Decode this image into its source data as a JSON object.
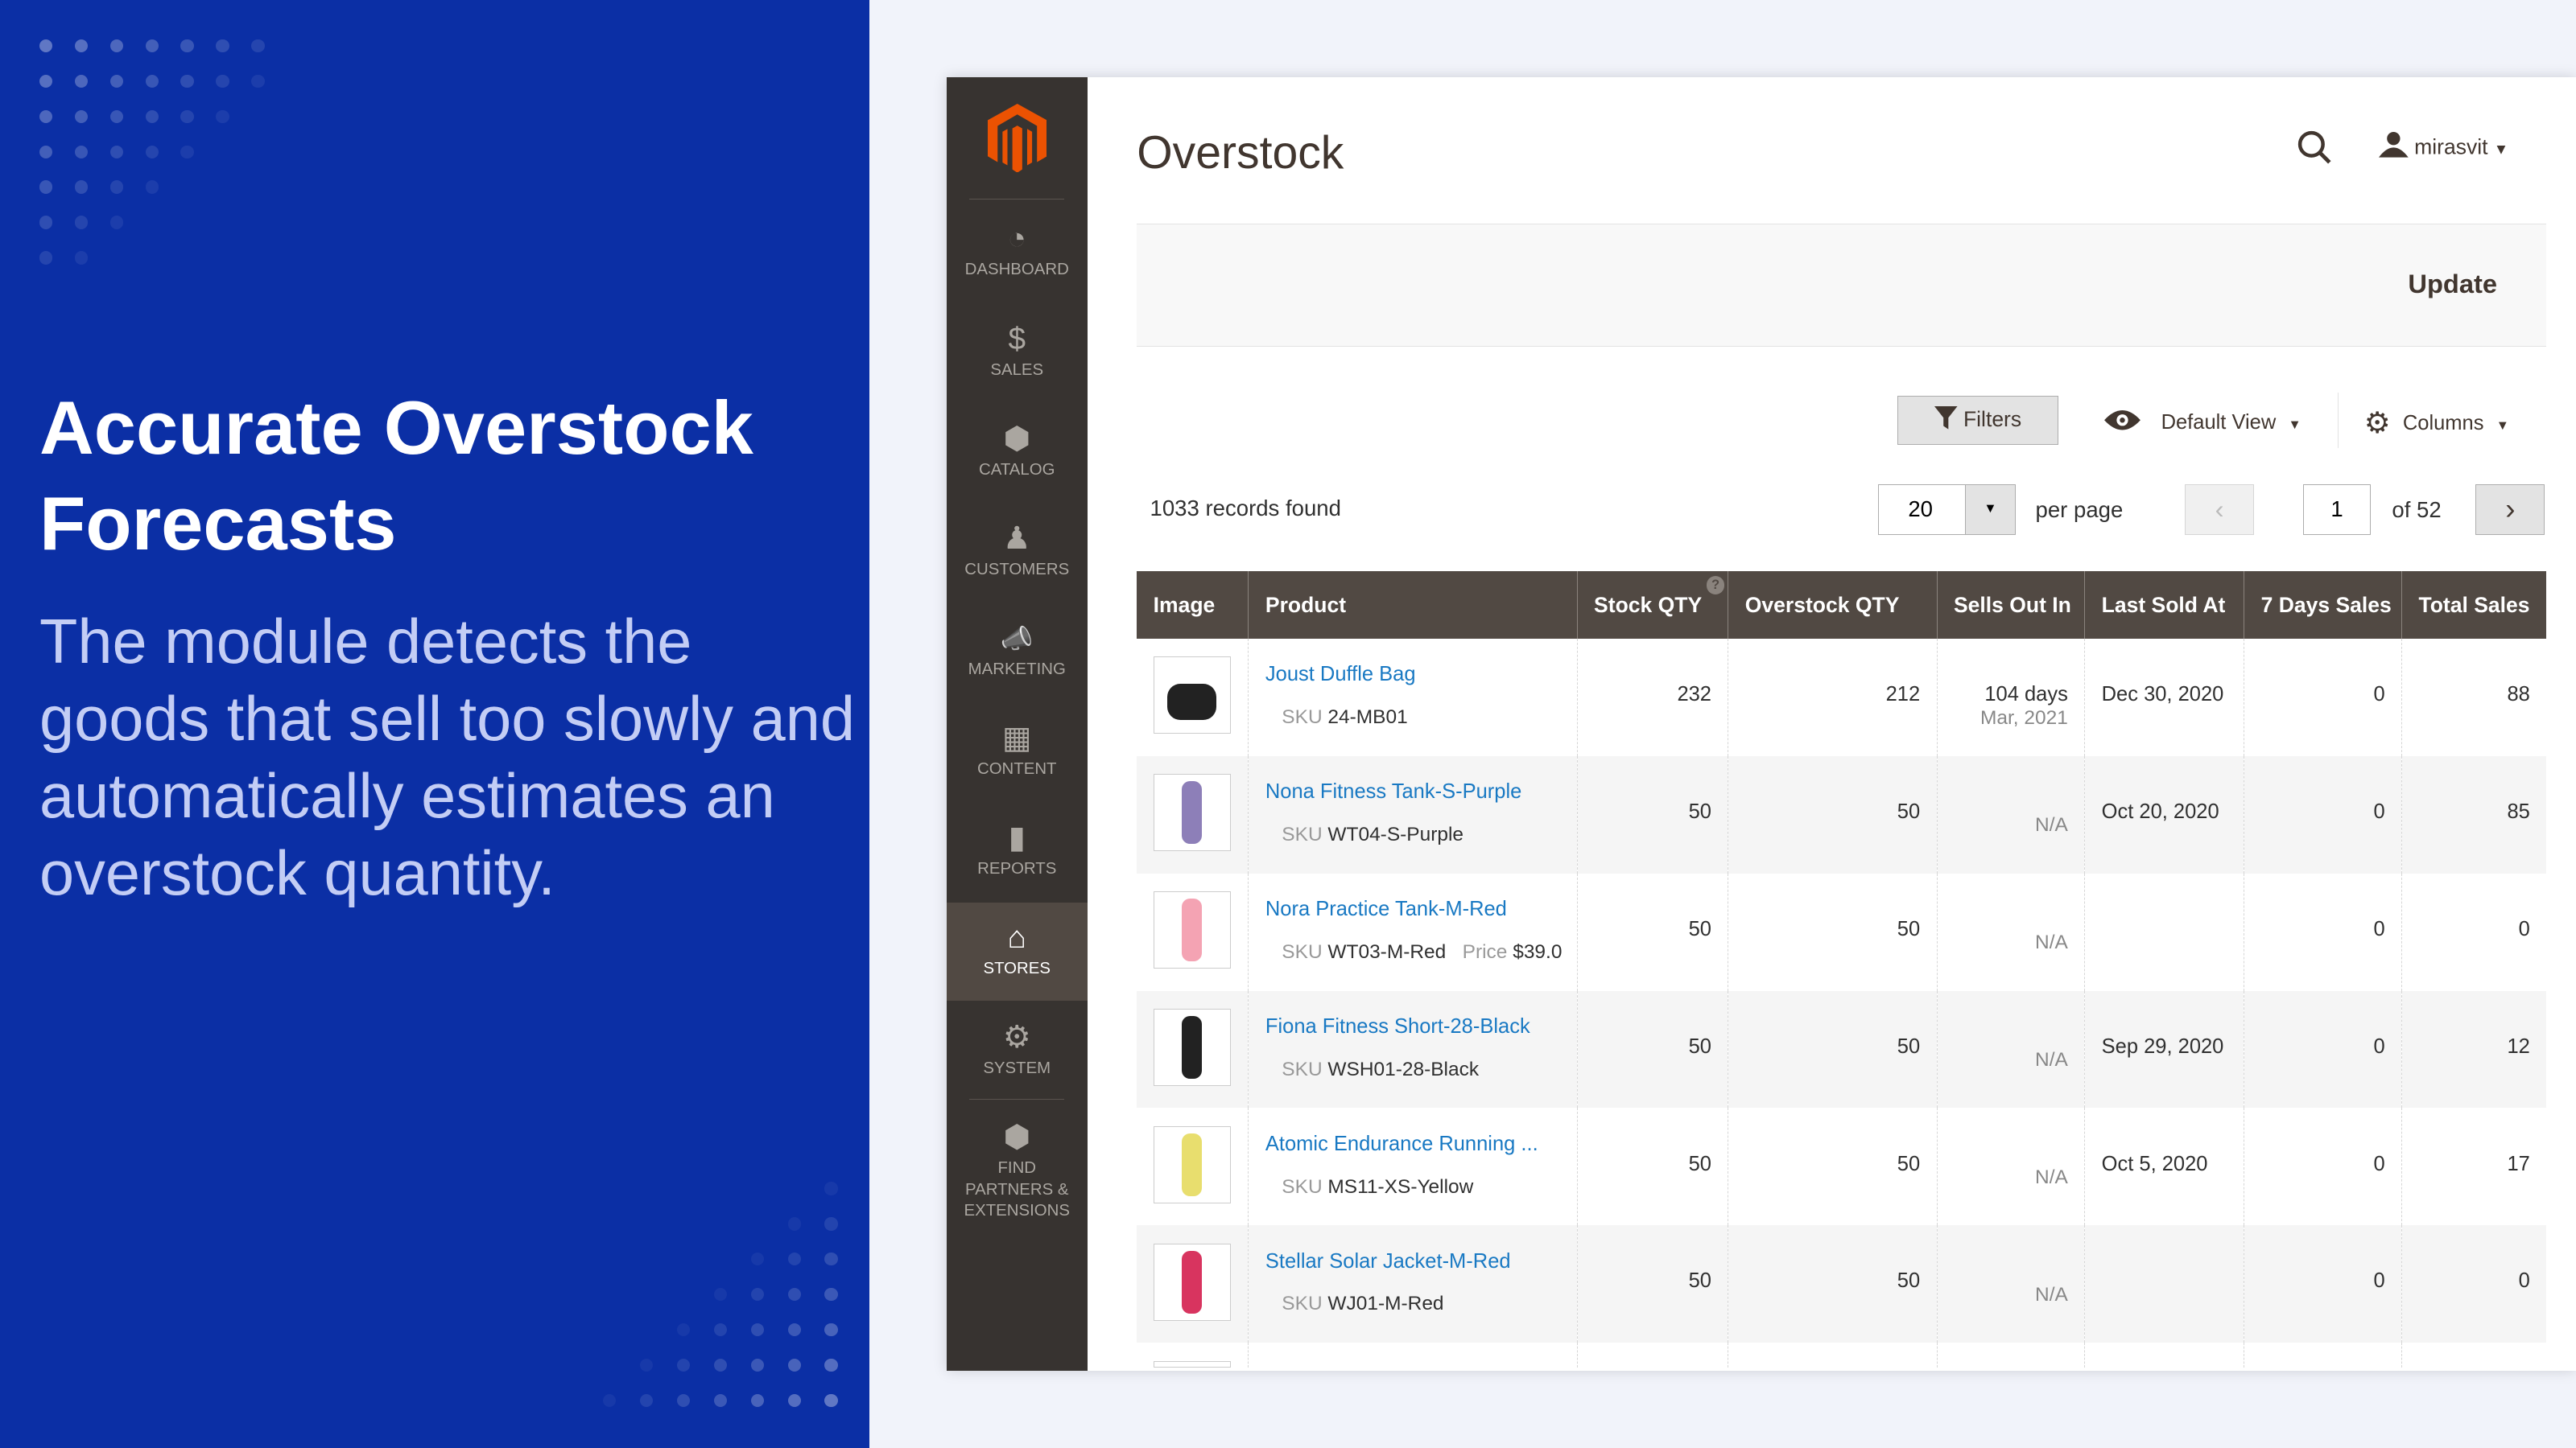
{
  "promo": {
    "title": "Accurate Overstock Forecasts",
    "body": "The module detects the goods that sell too slowly and automatically estimates an overstock quantity."
  },
  "sidebar": {
    "items": [
      {
        "label": "DASHBOARD",
        "icon": "dashboard-icon"
      },
      {
        "label": "SALES",
        "icon": "dollar-icon"
      },
      {
        "label": "CATALOG",
        "icon": "box-icon"
      },
      {
        "label": "CUSTOMERS",
        "icon": "person-icon"
      },
      {
        "label": "MARKETING",
        "icon": "megaphone-icon"
      },
      {
        "label": "CONTENT",
        "icon": "layout-icon"
      },
      {
        "label": "REPORTS",
        "icon": "bar-chart-icon"
      },
      {
        "label": "STORES",
        "icon": "store-icon",
        "active": true
      },
      {
        "label": "SYSTEM",
        "icon": "gear-icon"
      },
      {
        "label": "FIND PARTNERS & EXTENSIONS",
        "icon": "boxes-icon"
      }
    ]
  },
  "header": {
    "title": "Overstock",
    "user": "mirasvit"
  },
  "actions": {
    "update": "Update"
  },
  "toolbar": {
    "filters": "Filters",
    "view": "Default View",
    "columns": "Columns",
    "records": "1033 records found",
    "per_page_value": "20",
    "per_page_label": "per page",
    "page": "1",
    "of_pages": "of 52"
  },
  "table": {
    "columns": [
      "Image",
      "Product",
      "Stock QTY",
      "Overstock QTY",
      "Sells Out In",
      "Last Sold At",
      "7 Days Sales",
      "Total Sales"
    ],
    "rows": [
      {
        "product": "Joust Duffle Bag",
        "sku": "24-MB01",
        "price": "",
        "stock": "232",
        "overstock": "212",
        "sells_out": "104 days",
        "sells_out_date": "Mar, 2021",
        "last_sold": "Dec 30, 2020",
        "d7": "0",
        "total": "88"
      },
      {
        "product": "Nona Fitness Tank-S-Purple",
        "sku": "WT04-S-Purple",
        "price": "",
        "stock": "50",
        "overstock": "50",
        "sells_out": "",
        "sells_out_date": "N/A",
        "last_sold": "Oct 20, 2020",
        "d7": "0",
        "total": "85"
      },
      {
        "product": "Nora Practice Tank-M-Red",
        "sku": "WT03-M-Red",
        "price": "$39.0",
        "stock": "50",
        "overstock": "50",
        "sells_out": "",
        "sells_out_date": "N/A",
        "last_sold": "",
        "d7": "0",
        "total": "0"
      },
      {
        "product": "Fiona Fitness Short-28-Black",
        "sku": "WSH01-28-Black",
        "price": "",
        "stock": "50",
        "overstock": "50",
        "sells_out": "",
        "sells_out_date": "N/A",
        "last_sold": "Sep 29, 2020",
        "d7": "0",
        "total": "12"
      },
      {
        "product": "Atomic Endurance Running ...",
        "sku": "MS11-XS-Yellow",
        "price": "",
        "stock": "50",
        "overstock": "50",
        "sells_out": "",
        "sells_out_date": "N/A",
        "last_sold": "Oct 5, 2020",
        "d7": "0",
        "total": "17"
      },
      {
        "product": "Stellar Solar Jacket-M-Red",
        "sku": "WJ01-M-Red",
        "price": "",
        "stock": "50",
        "overstock": "50",
        "sells_out": "",
        "sells_out_date": "N/A",
        "last_sold": "",
        "d7": "0",
        "total": "0"
      }
    ],
    "sku_label": "SKU",
    "price_label": "Price"
  },
  "colors": {
    "promo_bg": "#0b2fa5",
    "sidebar_bg": "#373330",
    "header_bg": "#514943",
    "link": "#1979c3",
    "logo": "#eb5202"
  }
}
